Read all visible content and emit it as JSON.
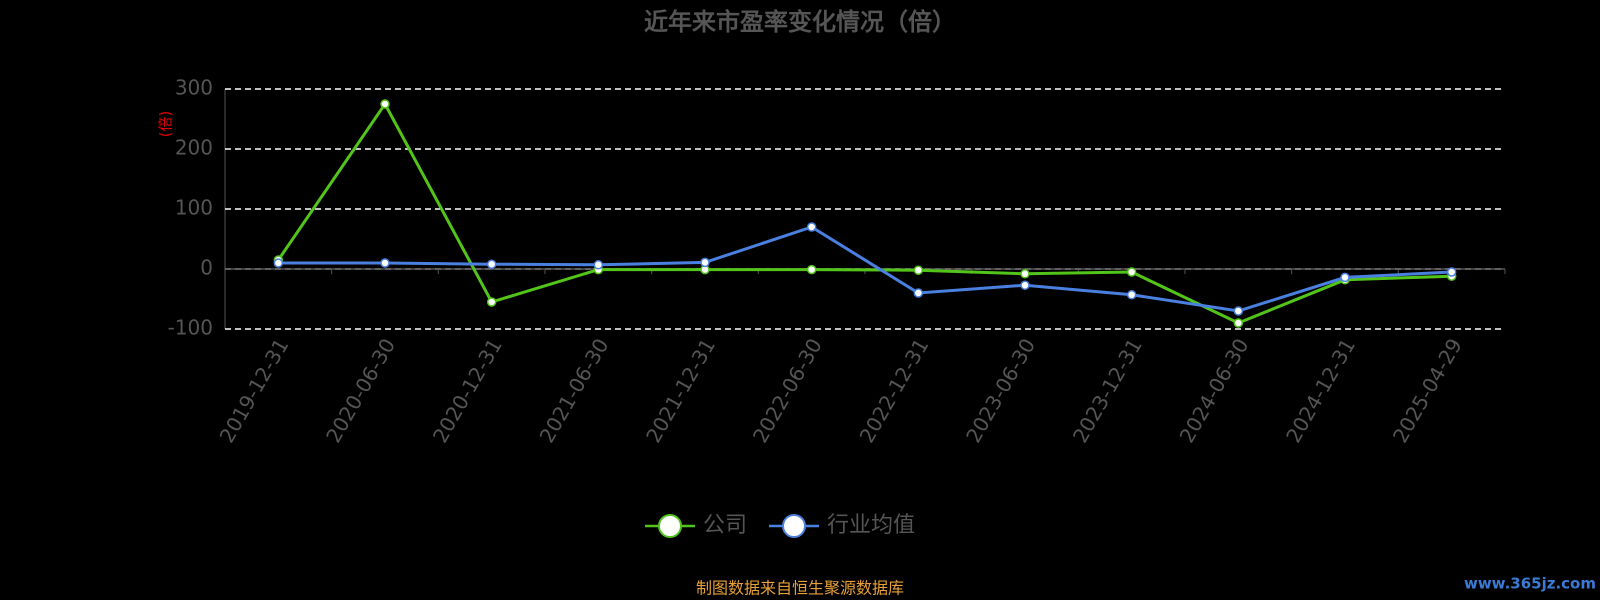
{
  "chart_data": {
    "type": "line",
    "title": "近年来市盈率变化情况（倍）",
    "y_label": "(倍)",
    "categories": [
      "2019-12-31",
      "2020-06-30",
      "2020-12-31",
      "2021-06-30",
      "2021-12-31",
      "2022-06-30",
      "2022-12-31",
      "2023-06-30",
      "2023-12-31",
      "2024-06-30",
      "2024-12-31",
      "2025-04-29"
    ],
    "series": [
      {
        "name": "公司",
        "color": "#52c41a",
        "values": [
          15,
          275,
          -55,
          -1,
          -1,
          -1,
          -2,
          -8,
          -5,
          -90,
          -18,
          -12
        ]
      },
      {
        "name": "行业均值",
        "color": "#4a80e0",
        "values": [
          10,
          10,
          8,
          7,
          11,
          70,
          -40,
          -27,
          -43,
          -70,
          -14,
          -5
        ]
      }
    ],
    "ylim": [
      -100,
      300
    ],
    "yticks": [
      -100,
      0,
      100,
      200,
      300
    ],
    "grid": true,
    "source": "制图数据来自恒生聚源数据库",
    "watermark": "www.365jz.com"
  }
}
